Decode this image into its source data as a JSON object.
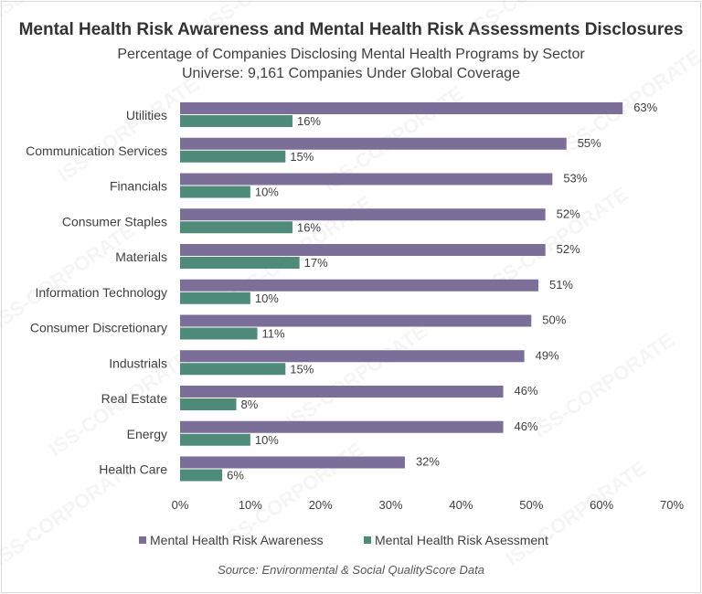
{
  "header": {
    "title": "Mental Health Risk Awareness and Mental Health Risk Assessments Disclosures",
    "subtitle_line1": "Percentage of Companies Disclosing Mental Health Programs by Sector",
    "subtitle_line2": "Universe: 9,161 Companies Under Global Coverage"
  },
  "footer": {
    "source": "Source: Environmental & Social QualityScore Data"
  },
  "watermark": "ISS-CORPORATE",
  "chart_data": {
    "type": "bar",
    "orientation": "horizontal",
    "title": "Mental Health Risk Awareness and Mental Health Risk Assessments Disclosures",
    "categories": [
      "Utilities",
      "Communication Services",
      "Financials",
      "Consumer Staples",
      "Materials",
      "Information Technology",
      "Consumer Discretionary",
      "Industrials",
      "Real Estate",
      "Energy",
      "Health Care"
    ],
    "series": [
      {
        "name": "Mental Health Risk Awareness",
        "values": [
          63,
          55,
          53,
          52,
          52,
          51,
          50,
          49,
          46,
          46,
          32
        ],
        "color": "#7b6f9a"
      },
      {
        "name": "Mental Health Risk Asessment",
        "values": [
          16,
          15,
          10,
          16,
          17,
          10,
          11,
          15,
          8,
          10,
          6
        ],
        "color": "#4e8b79"
      }
    ],
    "value_suffix": "%",
    "xlim": [
      0,
      70
    ],
    "xticks": [
      0,
      10,
      20,
      30,
      40,
      50,
      60,
      70
    ],
    "xtick_labels": [
      "0%",
      "10%",
      "20%",
      "30%",
      "40%",
      "50%",
      "60%",
      "70%"
    ],
    "grid": false,
    "legend_position": "bottom"
  }
}
